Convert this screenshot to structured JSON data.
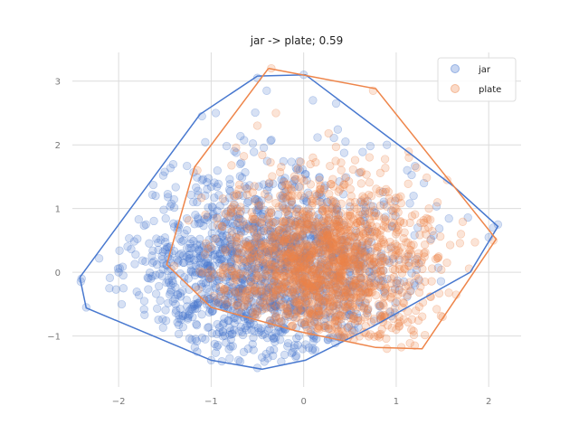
{
  "chart_data": {
    "type": "scatter",
    "title": "jar -> plate; 0.59",
    "xlabel": "",
    "ylabel": "",
    "xlim": [
      -2.5,
      2.35
    ],
    "ylim": [
      -1.8,
      3.45
    ],
    "xticks": [
      -2,
      -1,
      0,
      1,
      2
    ],
    "yticks": [
      -1,
      0,
      1,
      2,
      3
    ],
    "xtick_labels": [
      "−2",
      "−1",
      "0",
      "1",
      "2"
    ],
    "ytick_labels": [
      "−1",
      "0",
      "1",
      "2",
      "3"
    ],
    "grid": true,
    "legend_position": "top-right",
    "series": [
      {
        "name": "jar",
        "color": "#4878cf",
        "point_count_approx": 1500,
        "distribution": {
          "mean": [
            -0.35,
            0.05
          ],
          "std": [
            0.7,
            0.75
          ]
        },
        "sample_points": [
          [
            -2.4,
            -0.1
          ],
          [
            -2.35,
            -0.55
          ],
          [
            -2.1,
            -0.25
          ],
          [
            -2.0,
            0.0
          ],
          [
            -1.6,
            1.2
          ],
          [
            -1.3,
            0.5
          ],
          [
            -1.1,
            2.45
          ],
          [
            -0.95,
            2.5
          ],
          [
            -0.8,
            -1.35
          ],
          [
            -0.75,
            1.9
          ],
          [
            -0.6,
            -1.2
          ],
          [
            -0.5,
            3.05
          ],
          [
            -0.5,
            -1.5
          ],
          [
            -0.4,
            2.85
          ],
          [
            -0.3,
            0.2
          ],
          [
            -0.2,
            -0.9
          ],
          [
            -0.1,
            0.5
          ],
          [
            0.0,
            3.1
          ],
          [
            0.1,
            2.7
          ],
          [
            0.2,
            1.0
          ],
          [
            0.35,
            2.65
          ],
          [
            0.5,
            -0.3
          ],
          [
            0.9,
            2.0
          ],
          [
            1.3,
            1.4
          ],
          [
            2.0,
            0.55
          ],
          [
            2.1,
            0.75
          ],
          [
            2.05,
            0.7
          ],
          [
            -1.2,
            -0.7
          ],
          [
            -0.9,
            -0.5
          ],
          [
            -0.7,
            0.3
          ]
        ],
        "hull": [
          [
            -2.42,
            -0.08
          ],
          [
            -1.12,
            2.48
          ],
          [
            -0.5,
            3.08
          ],
          [
            0.02,
            3.1
          ],
          [
            1.62,
            1.35
          ],
          [
            2.1,
            0.72
          ],
          [
            1.8,
            0.0
          ],
          [
            0.75,
            -0.85
          ],
          [
            0.02,
            -1.38
          ],
          [
            -0.45,
            -1.52
          ],
          [
            -1.0,
            -1.38
          ],
          [
            -2.35,
            -0.56
          ],
          [
            -2.42,
            -0.08
          ]
        ]
      },
      {
        "name": "plate",
        "color": "#ee854a",
        "point_count_approx": 1500,
        "distribution": {
          "mean": [
            0.2,
            0.1
          ],
          "std": [
            0.55,
            0.7
          ]
        },
        "sample_points": [
          [
            -1.4,
            0.1
          ],
          [
            -1.15,
            1.6
          ],
          [
            -1.0,
            0.4
          ],
          [
            -0.7,
            1.3
          ],
          [
            -0.5,
            2.3
          ],
          [
            -0.35,
            3.2
          ],
          [
            -0.3,
            2.5
          ],
          [
            -0.2,
            -0.3
          ],
          [
            0.0,
            0.3
          ],
          [
            0.1,
            1.8
          ],
          [
            0.2,
            -0.6
          ],
          [
            0.3,
            0.5
          ],
          [
            0.5,
            -0.4
          ],
          [
            0.6,
            0.9
          ],
          [
            0.75,
            2.85
          ],
          [
            0.8,
            -1.0
          ],
          [
            0.9,
            -1.2
          ],
          [
            1.0,
            -0.9
          ],
          [
            1.1,
            0.2
          ],
          [
            1.2,
            -1.15
          ],
          [
            1.3,
            0.3
          ],
          [
            1.5,
            -0.7
          ],
          [
            1.55,
            1.45
          ],
          [
            1.7,
            0.6
          ],
          [
            2.05,
            0.5
          ],
          [
            0.4,
            0.0
          ],
          [
            0.0,
            -0.2
          ],
          [
            -0.1,
            0.8
          ],
          [
            0.7,
            -0.2
          ],
          [
            1.0,
            1.0
          ]
        ],
        "hull": [
          [
            -0.38,
            3.2
          ],
          [
            0.78,
            2.88
          ],
          [
            2.08,
            0.52
          ],
          [
            1.28,
            -1.2
          ],
          [
            0.78,
            -1.18
          ],
          [
            -0.08,
            -0.92
          ],
          [
            -1.0,
            -0.55
          ],
          [
            -1.48,
            0.12
          ],
          [
            -1.18,
            1.65
          ],
          [
            -0.38,
            3.2
          ]
        ]
      }
    ]
  }
}
